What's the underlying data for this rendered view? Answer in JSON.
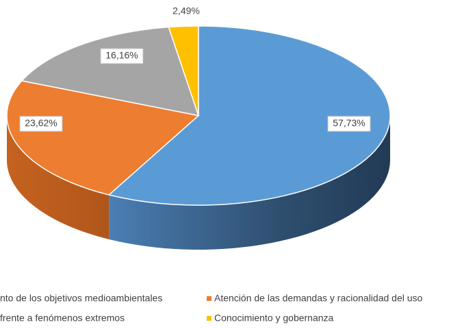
{
  "chart_data": {
    "type": "pie",
    "three_d": true,
    "categories": [
      "nto de los objetivos medioambientales",
      "Atención de las demandas y racionalidad del uso",
      "frente a fenómenos extremos",
      "Conocimiento y gobernanza"
    ],
    "values": [
      57.73,
      23.62,
      16.16,
      2.49
    ],
    "value_labels": [
      "57,73%",
      "23,62%",
      "16,16%",
      "2,49%"
    ],
    "colors": [
      "#5b9bd5",
      "#ed7d31",
      "#a5a5a5",
      "#ffc000"
    ]
  }
}
